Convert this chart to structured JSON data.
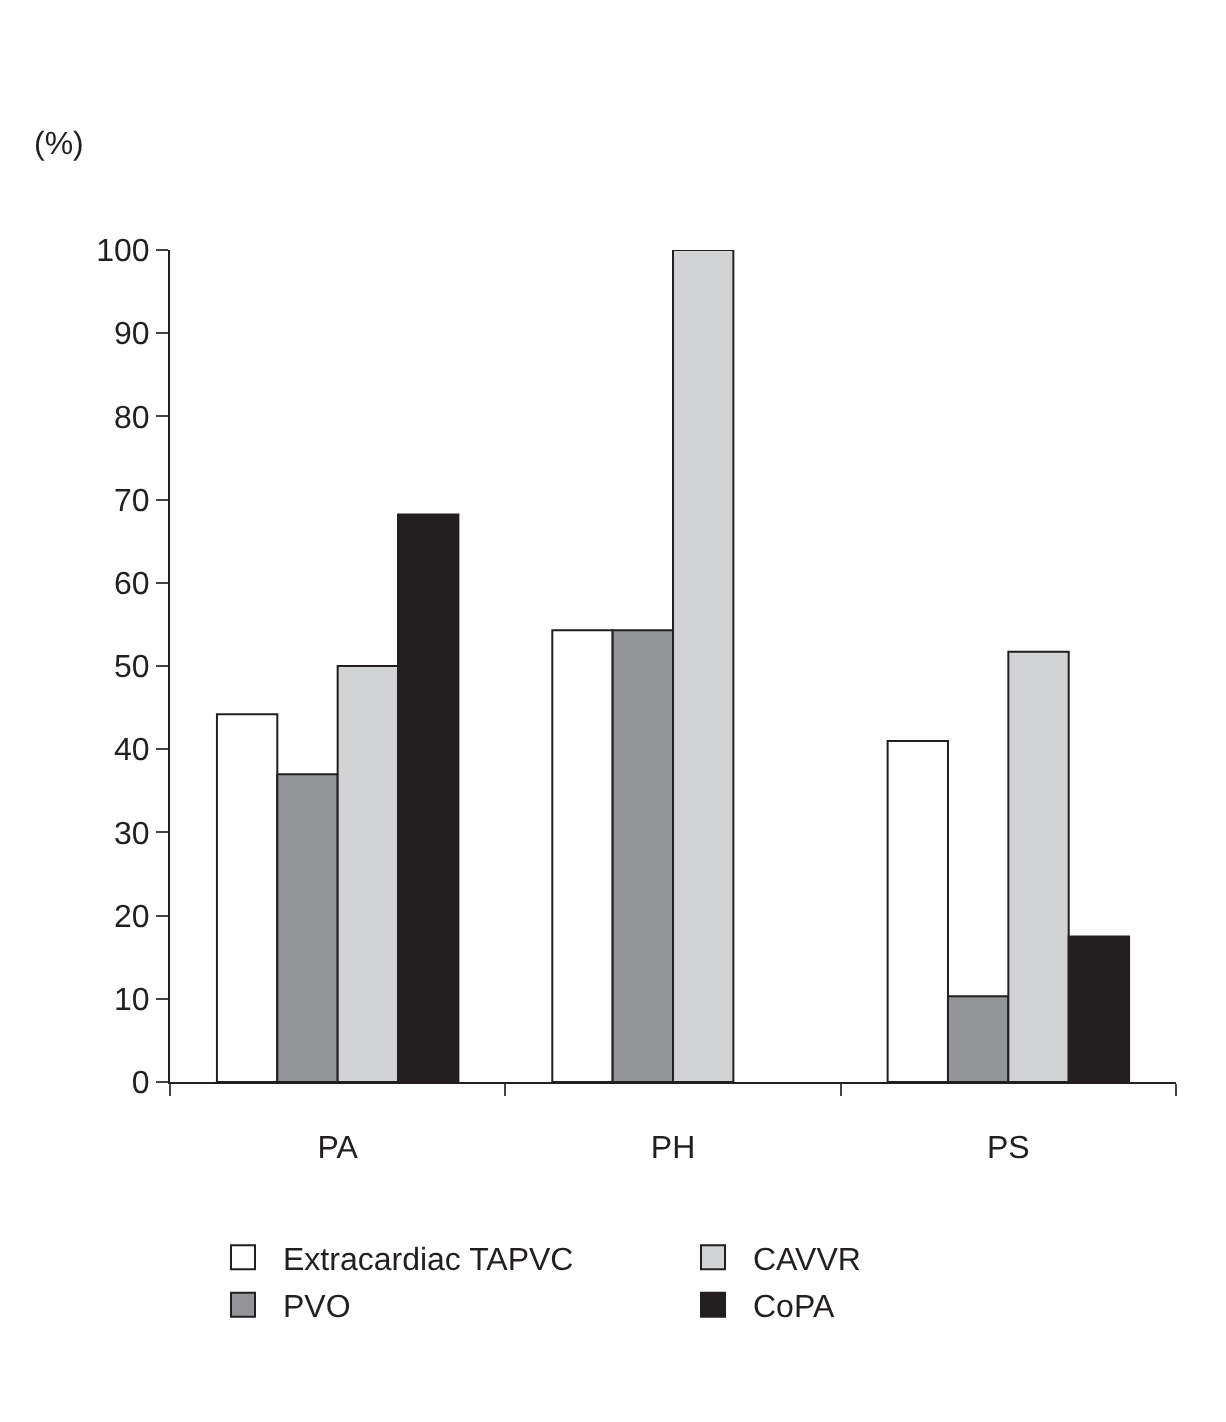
{
  "chart_data": {
    "type": "bar",
    "ylabel": "(%)",
    "categories": [
      "PA",
      "PH",
      "PS"
    ],
    "series": [
      {
        "name": "Extracardiac TAPVC",
        "color": "#ffffff",
        "values": [
          44.2,
          54.3,
          41
        ]
      },
      {
        "name": "PVO",
        "color": "#939598",
        "values": [
          37,
          54.3,
          10.3
        ]
      },
      {
        "name": "CAVVR",
        "color": "#d1d3d4",
        "values": [
          50,
          100,
          51.7
        ]
      },
      {
        "name": "CoPA",
        "color": "#231f20",
        "values": [
          68.2,
          null,
          17.5
        ]
      }
    ],
    "ylim": [
      0,
      100
    ],
    "yticks": [
      0,
      10,
      20,
      30,
      40,
      50,
      60,
      70,
      80,
      90,
      100
    ],
    "legend": "bottom"
  }
}
